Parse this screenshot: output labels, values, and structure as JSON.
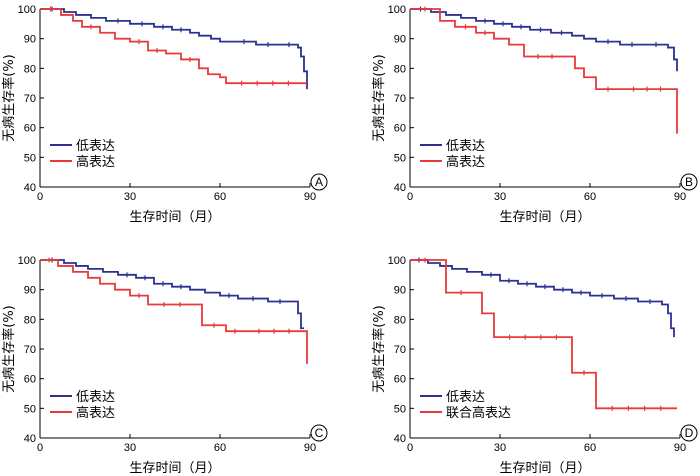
{
  "chart_data": [
    {
      "type": "line",
      "panel_label": "A",
      "xlabel": "生存时间（月）",
      "ylabel": "无病生存率(%)",
      "xlim": [
        0,
        90
      ],
      "ylim": [
        40,
        100
      ],
      "xticks": [
        0,
        30,
        60,
        90
      ],
      "yticks": [
        40,
        50,
        60,
        70,
        80,
        90,
        100
      ],
      "legend_position": "bottom-left",
      "series": [
        {
          "name": "低表达",
          "color": "#2e3192",
          "x": [
            0,
            8,
            12,
            17,
            22,
            30,
            38,
            44,
            50,
            53,
            57,
            60,
            64,
            72,
            80,
            86,
            87,
            88,
            89
          ],
          "y": [
            100,
            99,
            98,
            97,
            96,
            95,
            94,
            93,
            92,
            91,
            90,
            89,
            89,
            88,
            88,
            87,
            84,
            79,
            73
          ]
        },
        {
          "name": "高表达",
          "color": "#e83a3a",
          "x": [
            0,
            7,
            11,
            14,
            20,
            25,
            30,
            36,
            42,
            47,
            53,
            56,
            60,
            62,
            88,
            89
          ],
          "y": [
            100,
            98,
            96,
            94,
            92,
            90,
            89,
            86,
            85,
            83,
            80,
            78,
            77,
            75,
            75,
            75
          ]
        }
      ]
    },
    {
      "type": "line",
      "panel_label": "B",
      "xlabel": "生存时间（月）",
      "ylabel": "无病生存率(%)",
      "xlim": [
        0,
        90
      ],
      "ylim": [
        40,
        100
      ],
      "xticks": [
        0,
        30,
        60,
        90
      ],
      "yticks": [
        40,
        50,
        60,
        70,
        80,
        90,
        100
      ],
      "legend_position": "bottom-left",
      "series": [
        {
          "name": "低表达",
          "color": "#2e3192",
          "x": [
            0,
            7,
            12,
            17,
            22,
            28,
            34,
            40,
            47,
            54,
            58,
            62,
            70,
            78,
            86,
            88,
            89
          ],
          "y": [
            100,
            99,
            98,
            97,
            96,
            95,
            94,
            93,
            92,
            91,
            90,
            89,
            88,
            88,
            87,
            83,
            79
          ]
        },
        {
          "name": "高表达",
          "color": "#e83a3a",
          "x": [
            0,
            10,
            15,
            22,
            28,
            33,
            38,
            52,
            55,
            58,
            62,
            70,
            88,
            89
          ],
          "y": [
            100,
            96,
            94,
            92,
            90,
            88,
            84,
            84,
            80,
            77,
            73,
            73,
            73,
            58
          ]
        }
      ]
    },
    {
      "type": "line",
      "panel_label": "C",
      "xlabel": "生存时间（月）",
      "ylabel": "无病生存率(%)",
      "xlim": [
        0,
        90
      ],
      "ylim": [
        40,
        100
      ],
      "xticks": [
        0,
        30,
        60,
        90
      ],
      "yticks": [
        40,
        50,
        60,
        70,
        80,
        90,
        100
      ],
      "legend_position": "bottom-left",
      "series": [
        {
          "name": "低表达",
          "color": "#2e3192",
          "x": [
            0,
            8,
            12,
            16,
            21,
            26,
            32,
            38,
            44,
            50,
            55,
            60,
            66,
            76,
            84,
            86,
            87,
            88
          ],
          "y": [
            100,
            99,
            98,
            97,
            96,
            95,
            94,
            92,
            91,
            90,
            89,
            88,
            87,
            86,
            86,
            82,
            77,
            77
          ]
        },
        {
          "name": "高表达",
          "color": "#e83a3a",
          "x": [
            0,
            6,
            11,
            16,
            20,
            25,
            30,
            36,
            52,
            54,
            62,
            68,
            88,
            89
          ],
          "y": [
            100,
            98,
            96,
            94,
            92,
            90,
            88,
            85,
            85,
            78,
            76,
            76,
            76,
            65
          ]
        }
      ]
    },
    {
      "type": "line",
      "panel_label": "D",
      "xlabel": "生存时间（月）",
      "ylabel": "无病生存率(%)",
      "xlim": [
        0,
        90
      ],
      "ylim": [
        40,
        100
      ],
      "xticks": [
        0,
        30,
        60,
        90
      ],
      "yticks": [
        40,
        50,
        60,
        70,
        80,
        90,
        100
      ],
      "legend_position": "bottom-left",
      "series": [
        {
          "name": "低表达",
          "color": "#2e3192",
          "x": [
            0,
            6,
            10,
            14,
            19,
            24,
            30,
            36,
            42,
            48,
            54,
            60,
            68,
            76,
            84,
            86,
            87,
            88
          ],
          "y": [
            100,
            99,
            98,
            97,
            96,
            95,
            93,
            92,
            91,
            90,
            89,
            88,
            87,
            86,
            85,
            82,
            77,
            74
          ]
        },
        {
          "name": "联合高表达",
          "color": "#e83a3a",
          "x": [
            0,
            10,
            12,
            22,
            24,
            28,
            54,
            62,
            89
          ],
          "y": [
            100,
            100,
            89,
            89,
            82,
            74,
            62,
            50,
            50
          ]
        }
      ]
    }
  ]
}
